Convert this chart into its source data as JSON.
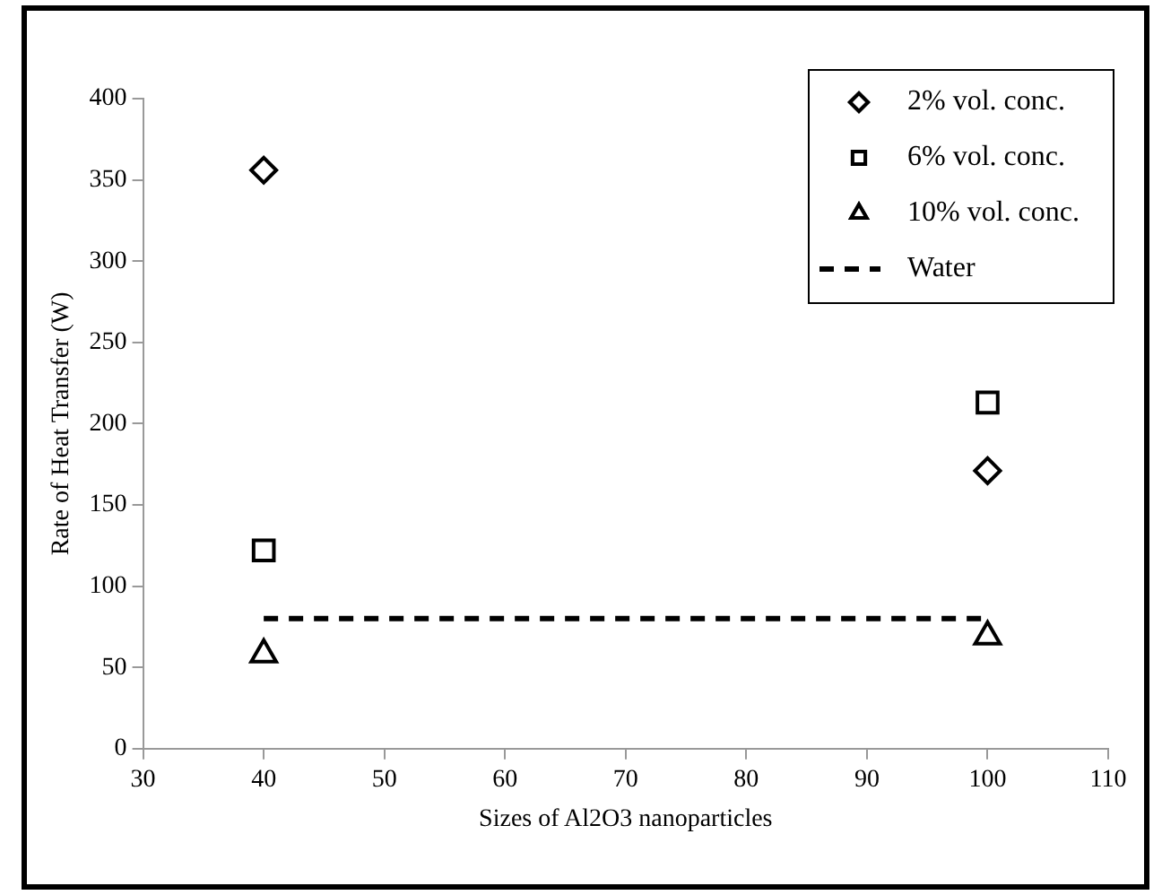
{
  "chart_data": {
    "type": "scatter",
    "xlabel": "Sizes of Al2O3 nanoparticles",
    "ylabel": "Rate of Heat Transfer (W)",
    "x": [
      40,
      100
    ],
    "series": [
      {
        "name": "2% vol. conc.",
        "color": "#000000",
        "marker": "diamond",
        "values": [
          356,
          171
        ]
      },
      {
        "name": "6% vol. conc.",
        "color": "#000000",
        "marker": "square",
        "values": [
          122,
          213
        ]
      },
      {
        "name": "10% vol. conc.",
        "color": "#000000",
        "marker": "triangle",
        "values": [
          58,
          69
        ]
      },
      {
        "name": "Water",
        "type": "line",
        "color": "#000000",
        "marker": "none",
        "line_style": "dashed",
        "values": [
          80,
          80
        ]
      }
    ],
    "xlim": [
      30,
      110
    ],
    "xticks": [
      30,
      40,
      50,
      60,
      70,
      80,
      90,
      100,
      110
    ],
    "ylim": [
      0,
      400
    ],
    "yticks": [
      0,
      50,
      100,
      150,
      200,
      250,
      300,
      350,
      400
    ],
    "grid": false,
    "legend": "top right"
  }
}
